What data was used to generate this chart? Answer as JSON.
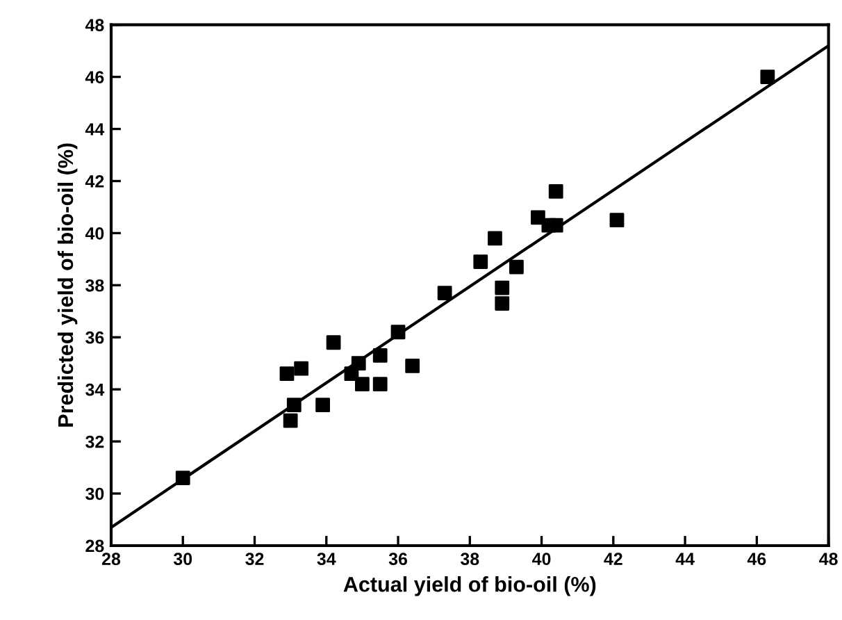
{
  "chart_data": {
    "type": "scatter",
    "xlabel": "Actual yield of bio-oil (%)",
    "ylabel": "Predicted yield of bio-oil (%)",
    "xlim": [
      28,
      48
    ],
    "ylim": [
      28,
      48
    ],
    "xticks": [
      28,
      30,
      32,
      34,
      36,
      38,
      40,
      42,
      44,
      46,
      48
    ],
    "yticks": [
      28,
      30,
      32,
      34,
      36,
      38,
      40,
      42,
      44,
      46,
      48
    ],
    "grid": false,
    "series": [
      {
        "color": "#000000",
        "marker": "square",
        "x": [
          30.0,
          32.9,
          33.1,
          33.0,
          33.3,
          33.9,
          34.2,
          34.7,
          34.9,
          35.0,
          35.5,
          35.5,
          36.0,
          36.4,
          37.3,
          38.3,
          38.7,
          38.9,
          38.9,
          39.3,
          39.9,
          40.2,
          40.4,
          40.4,
          42.1,
          46.3
        ],
        "values": [
          30.6,
          34.6,
          33.4,
          32.8,
          34.8,
          33.4,
          35.8,
          34.6,
          35.0,
          34.2,
          34.2,
          35.3,
          36.2,
          34.9,
          37.7,
          38.9,
          39.8,
          37.9,
          37.3,
          38.7,
          40.6,
          40.3,
          40.3,
          41.6,
          40.5,
          46.0
        ]
      },
      {
        "type": "line",
        "color": "#000000",
        "line_style": "solid",
        "x": [
          28,
          48
        ],
        "values": [
          28.7,
          47.2
        ]
      }
    ]
  }
}
